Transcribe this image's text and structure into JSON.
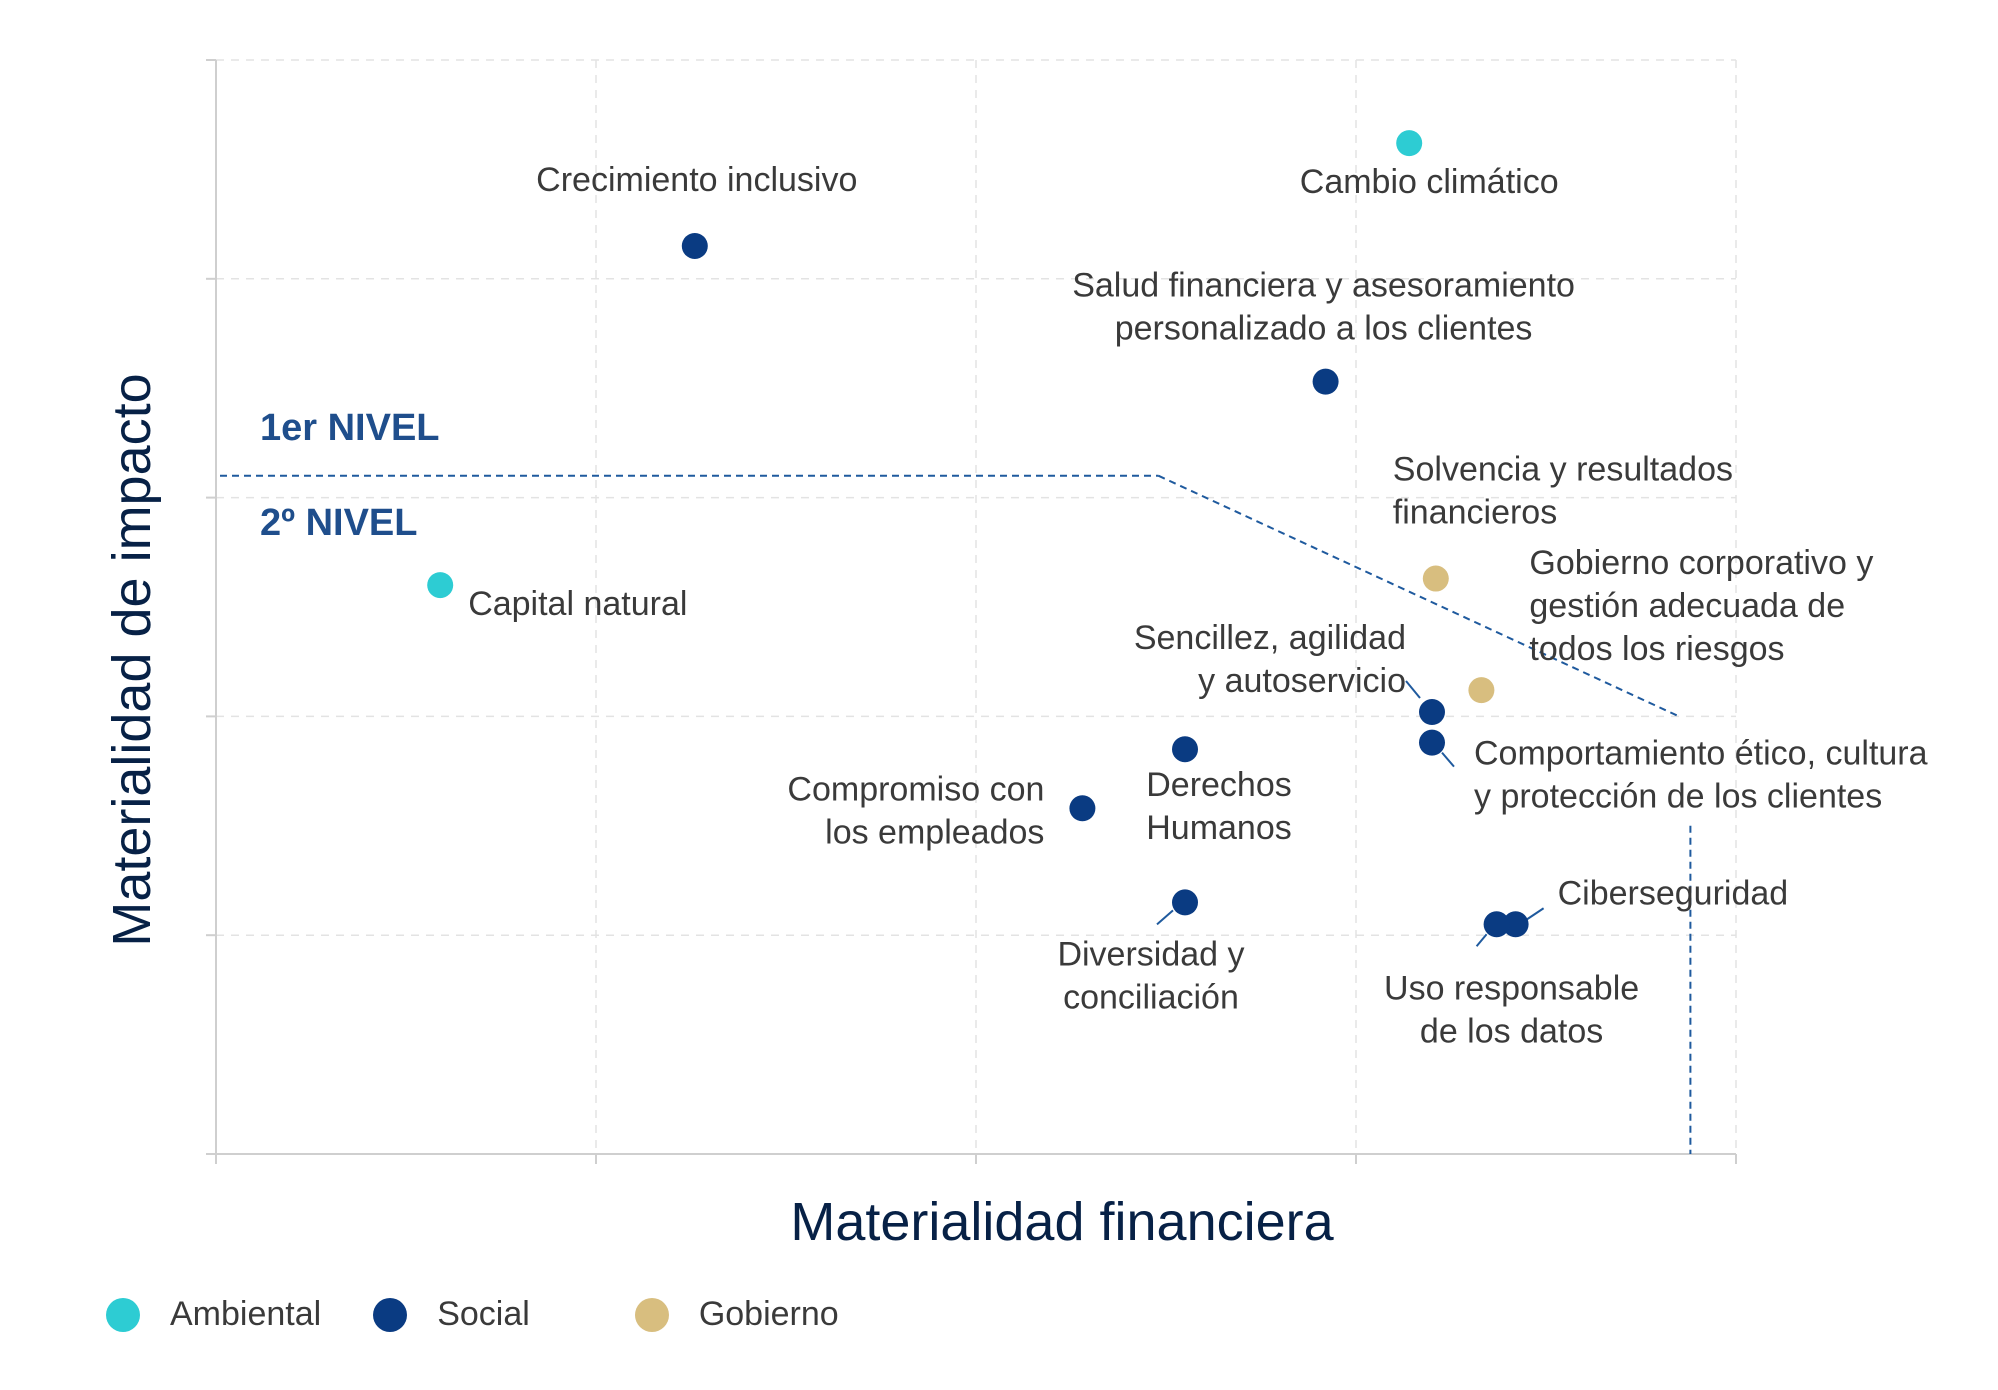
{
  "colors": {
    "ambiental": "#2dccd3",
    "social": "#0a3b82",
    "gobierno": "#d8be7f",
    "threshold": "#1f5a9e",
    "grid": "#e3e3e3",
    "axis": "#cfcfcf"
  },
  "chart_data": {
    "type": "scatter",
    "title": "",
    "xlabel": "Materialidad financiera",
    "ylabel": "Materialidad de impacto",
    "xlim": [
      0,
      4
    ],
    "ylim": [
      0,
      5
    ],
    "grid": true,
    "tick_labels_shown": false,
    "levels": {
      "first": "1er NIVEL",
      "second": "2º NIVEL"
    },
    "threshold": {
      "y": 3.1,
      "x_vertical": 3.88,
      "break_x": 2.48,
      "diag_end": [
        3.85,
        2.0
      ]
    },
    "legend": [
      {
        "key": "ambiental",
        "label": "Ambiental"
      },
      {
        "key": "social",
        "label": "Social"
      },
      {
        "key": "gobierno",
        "label": "Gobierno"
      }
    ],
    "points": [
      {
        "label": [
          "Cambio climático"
        ],
        "category": "ambiental",
        "x": 3.14,
        "y": 4.62
      },
      {
        "label": [
          "Crecimiento inclusivo"
        ],
        "category": "social",
        "x": 1.26,
        "y": 4.15
      },
      {
        "label": [
          "Salud financiera y asesoramiento",
          "personalizado a los clientes"
        ],
        "category": "social",
        "x": 2.92,
        "y": 3.53
      },
      {
        "label": [
          "Solvencia y resultados",
          "financieros"
        ],
        "category": "gobierno",
        "x": 3.21,
        "y": 2.63
      },
      {
        "label": [
          "Capital natural"
        ],
        "category": "ambiental",
        "x": 0.59,
        "y": 2.6
      },
      {
        "label": [
          "Gobierno corporativo y",
          "gestión adecuada de",
          "todos los riesgos"
        ],
        "category": "gobierno",
        "x": 3.33,
        "y": 2.12
      },
      {
        "label": [
          "Sencillez, agilidad",
          "y autoservicio"
        ],
        "category": "social",
        "x": 3.2,
        "y": 2.02
      },
      {
        "label": [
          "Comportamiento ético, cultura",
          "y protección de los clientes"
        ],
        "category": "social",
        "x": 3.2,
        "y": 1.88
      },
      {
        "label": [
          "Derechos",
          "Humanos"
        ],
        "category": "social",
        "x": 2.55,
        "y": 1.85
      },
      {
        "label": [
          "Compromiso con",
          "los empleados"
        ],
        "category": "social",
        "x": 2.28,
        "y": 1.58
      },
      {
        "label": [
          "Diversidad y",
          "conciliación"
        ],
        "category": "social",
        "x": 2.55,
        "y": 1.15
      },
      {
        "label": [
          "Ciberseguridad"
        ],
        "category": "social",
        "x": 3.42,
        "y": 1.05
      },
      {
        "label": [
          "Uso responsable",
          "de los datos"
        ],
        "category": "social",
        "x": 3.37,
        "y": 1.05
      }
    ]
  }
}
